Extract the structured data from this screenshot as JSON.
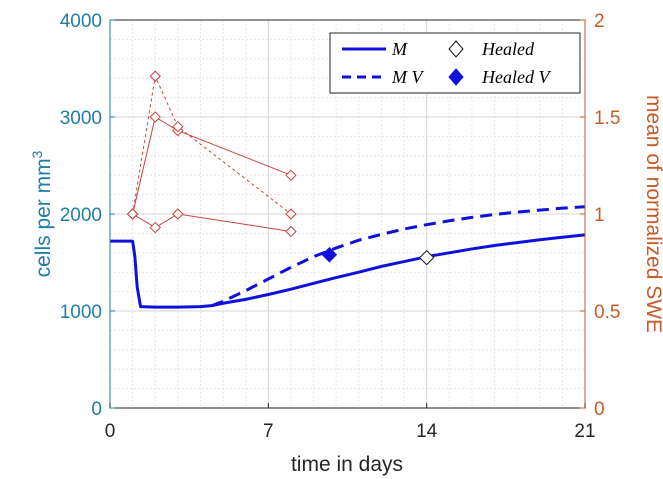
{
  "chart_data": {
    "type": "line",
    "title": "",
    "xlabel": "time in days",
    "ylabel_left": "cells per mm",
    "ylabel_left_sup": "3",
    "ylabel_right": "mean of normalized SWE",
    "xlim": [
      0,
      21
    ],
    "ylim_left": [
      0,
      4000
    ],
    "ylim_right": [
      0,
      2
    ],
    "xticks": [
      0,
      7,
      14,
      21
    ],
    "yticks_left": [
      0,
      1000,
      2000,
      3000,
      4000
    ],
    "yticks_right": [
      0,
      0.5,
      1,
      1.5,
      2
    ],
    "grid": true,
    "legend_position": "top-right",
    "colors": {
      "blue_series": "#1010dd",
      "red_series": "#c9423c",
      "left_axis": "#1f7ea5",
      "right_axis": "#c85a28",
      "grid": "#e6e6e6"
    },
    "series": [
      {
        "name": "M",
        "axis": "left",
        "style": "solid",
        "x": [
          0,
          1.0,
          1.1,
          1.2,
          1.35,
          2,
          3,
          4,
          4.5,
          5,
          6,
          7,
          8,
          9,
          10,
          11,
          12,
          13,
          14,
          15,
          16,
          17,
          18,
          19,
          20,
          21
        ],
        "y": [
          1720,
          1720,
          1560,
          1250,
          1045,
          1040,
          1040,
          1045,
          1055,
          1080,
          1120,
          1170,
          1225,
          1285,
          1345,
          1400,
          1460,
          1510,
          1560,
          1600,
          1640,
          1675,
          1705,
          1735,
          1760,
          1785
        ]
      },
      {
        "name": "M V",
        "axis": "left",
        "style": "dashed",
        "x": [
          4.5,
          5,
          6,
          7,
          8,
          9,
          10,
          11,
          12,
          13,
          14,
          15,
          16,
          17,
          18,
          19,
          20,
          21
        ],
        "y": [
          1055,
          1100,
          1210,
          1330,
          1450,
          1560,
          1650,
          1730,
          1790,
          1845,
          1890,
          1930,
          1965,
          1995,
          2020,
          2040,
          2060,
          2075
        ]
      },
      {
        "name": "Healed",
        "axis": "left",
        "marker": "open-diamond",
        "x": [
          14
        ],
        "y": [
          1550
        ]
      },
      {
        "name": "Healed V",
        "axis": "left",
        "marker": "filled-diamond",
        "x": [
          9.7
        ],
        "y": [
          1580
        ]
      }
    ],
    "swe_series": [
      {
        "axis": "right",
        "style": "solid",
        "x": [
          1,
          2,
          3,
          8
        ],
        "y": [
          1.0,
          1.5,
          1.43,
          1.2
        ]
      },
      {
        "axis": "right",
        "style": "dotted",
        "x": [
          1,
          2,
          3,
          8
        ],
        "y": [
          1.0,
          1.71,
          1.45,
          1.0
        ]
      },
      {
        "axis": "right",
        "style": "solid",
        "x": [
          1,
          2,
          3,
          8
        ],
        "y": [
          1.0,
          0.93,
          1.0,
          0.91
        ]
      }
    ]
  }
}
